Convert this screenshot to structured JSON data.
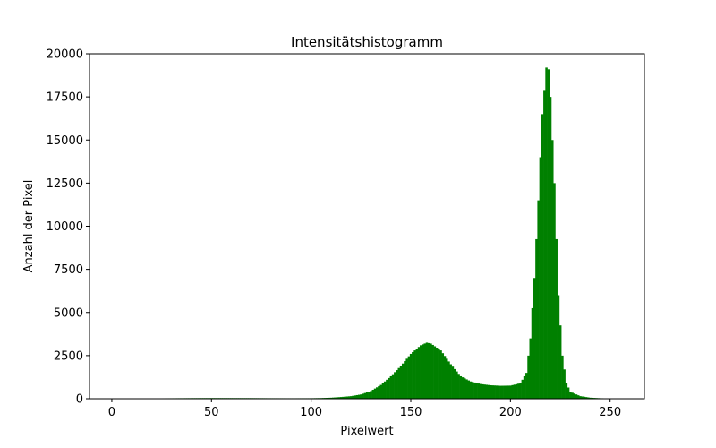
{
  "chart_data": {
    "type": "bar",
    "title": "Intensitätshistogramm",
    "xlabel": "Pixelwert",
    "ylabel": "Anzahl der Pixel",
    "xlim": [
      -11.2,
      267.2
    ],
    "ylim": [
      0,
      20000
    ],
    "grid": false,
    "x_ticks": [
      0,
      50,
      100,
      150,
      200,
      250
    ],
    "y_ticks": [
      0,
      2500,
      5000,
      7500,
      10000,
      12500,
      15000,
      17500,
      20000
    ],
    "colors": {
      "bars": "#008000"
    },
    "profile": [
      [
        0,
        20
      ],
      [
        10,
        22
      ],
      [
        20,
        24
      ],
      [
        30,
        28
      ],
      [
        40,
        35
      ],
      [
        50,
        40
      ],
      [
        60,
        38
      ],
      [
        70,
        36
      ],
      [
        80,
        30
      ],
      [
        90,
        28
      ],
      [
        100,
        30
      ],
      [
        105,
        40
      ],
      [
        110,
        60
      ],
      [
        115,
        100
      ],
      [
        120,
        150
      ],
      [
        125,
        250
      ],
      [
        130,
        450
      ],
      [
        135,
        800
      ],
      [
        140,
        1300
      ],
      [
        145,
        1900
      ],
      [
        150,
        2600
      ],
      [
        155,
        3100
      ],
      [
        158,
        3250
      ],
      [
        160,
        3200
      ],
      [
        165,
        2800
      ],
      [
        170,
        2000
      ],
      [
        175,
        1300
      ],
      [
        180,
        1000
      ],
      [
        185,
        850
      ],
      [
        190,
        780
      ],
      [
        195,
        750
      ],
      [
        200,
        760
      ],
      [
        205,
        900
      ],
      [
        208,
        1500
      ],
      [
        210,
        3500
      ],
      [
        212,
        7000
      ],
      [
        214,
        11500
      ],
      [
        216,
        16500
      ],
      [
        218,
        19200
      ],
      [
        219,
        19100
      ],
      [
        220,
        17500
      ],
      [
        222,
        12500
      ],
      [
        224,
        6000
      ],
      [
        226,
        2500
      ],
      [
        228,
        900
      ],
      [
        230,
        400
      ],
      [
        235,
        150
      ],
      [
        240,
        60
      ],
      [
        245,
        30
      ],
      [
        250,
        20
      ],
      [
        255,
        15
      ]
    ]
  }
}
